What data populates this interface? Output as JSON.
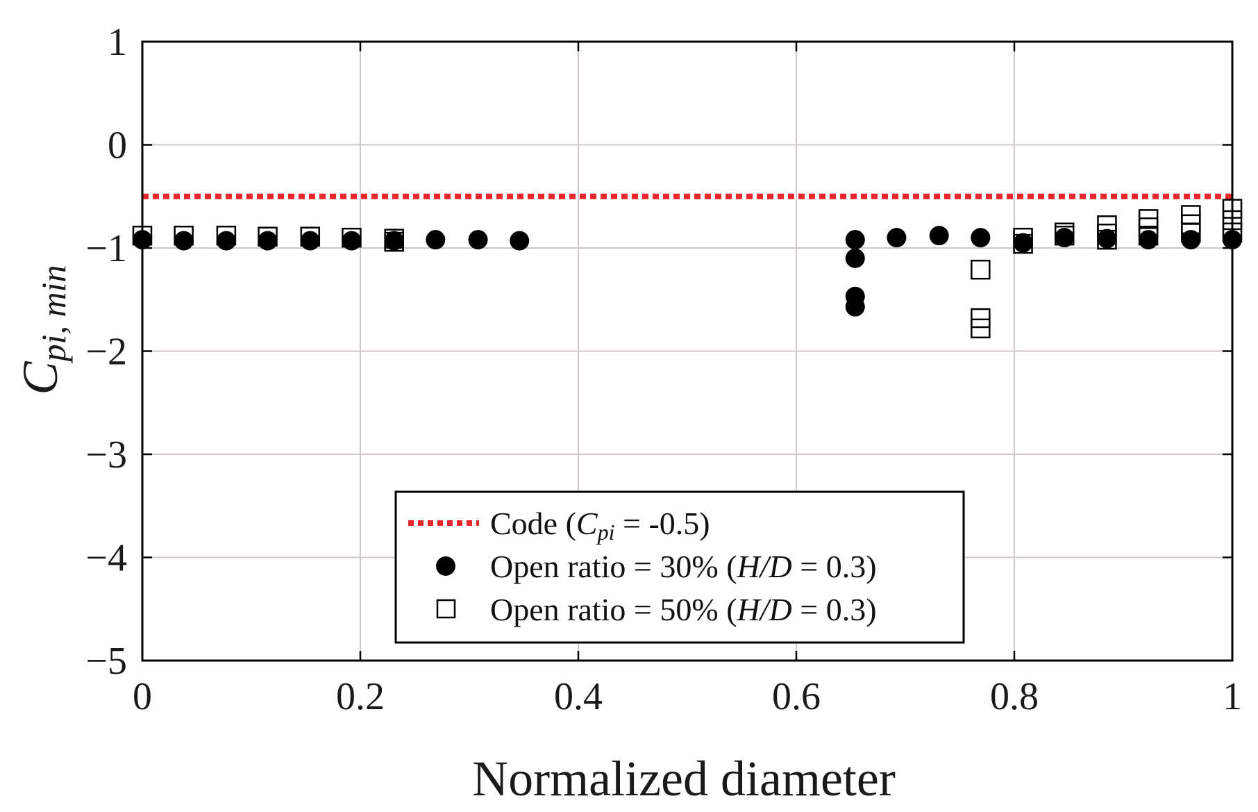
{
  "chart_data": {
    "type": "scatter",
    "xlabel": "Normalized diameter",
    "ylabel": {
      "main": "C",
      "sub": "pi, min"
    },
    "xlim": [
      0,
      1
    ],
    "ylim": [
      -5,
      1
    ],
    "xticks": [
      0,
      0.2,
      0.4,
      0.6,
      0.8,
      1
    ],
    "xtick_labels": [
      "0",
      "0.2",
      "0.4",
      "0.6",
      "0.8",
      "1"
    ],
    "yticks": [
      1,
      0,
      -1,
      -2,
      -3,
      -4,
      -5
    ],
    "ytick_labels": [
      "1",
      "0",
      "−1",
      "−2",
      "−3",
      "−4",
      "−5"
    ],
    "grid": true,
    "legend_position": "bottom-center",
    "reference_line": {
      "name": "Code",
      "value": -0.5,
      "color": "#e8262b",
      "style": "dotted",
      "legend": {
        "pre": "Code (",
        "sym": "C",
        "sub": "pi",
        "post": " = -0.5)"
      }
    },
    "series": [
      {
        "name": "Open ratio = 30%",
        "marker": "filled-circle",
        "color": "#000000",
        "legend": {
          "pre": "Open ratio = 30% (",
          "it": "H/D",
          "post": " = 0.3)"
        },
        "points": [
          [
            0.0,
            -0.92
          ],
          [
            0.038,
            -0.93
          ],
          [
            0.077,
            -0.93
          ],
          [
            0.115,
            -0.93
          ],
          [
            0.154,
            -0.93
          ],
          [
            0.192,
            -0.93
          ],
          [
            0.231,
            -0.93
          ],
          [
            0.269,
            -0.92
          ],
          [
            0.308,
            -0.92
          ],
          [
            0.346,
            -0.93
          ],
          [
            0.654,
            -0.92
          ],
          [
            0.654,
            -1.1
          ],
          [
            0.654,
            -1.47
          ],
          [
            0.654,
            -1.57
          ],
          [
            0.692,
            -0.9
          ],
          [
            0.731,
            -0.88
          ],
          [
            0.769,
            -0.9
          ],
          [
            0.808,
            -0.95
          ],
          [
            0.846,
            -0.9
          ],
          [
            0.885,
            -0.91
          ],
          [
            0.923,
            -0.92
          ],
          [
            0.962,
            -0.92
          ],
          [
            1.0,
            -0.92
          ]
        ]
      },
      {
        "name": "Open ratio = 50%",
        "marker": "open-square",
        "color": "#000000",
        "legend": {
          "pre": "Open ratio = 50% (",
          "it": "H/D",
          "post": " = 0.3)"
        },
        "points": [
          [
            0.0,
            -0.88
          ],
          [
            0.038,
            -0.88
          ],
          [
            0.077,
            -0.88
          ],
          [
            0.115,
            -0.89
          ],
          [
            0.154,
            -0.89
          ],
          [
            0.192,
            -0.9
          ],
          [
            0.231,
            -0.91
          ],
          [
            0.231,
            -0.94
          ],
          [
            0.769,
            -1.21
          ],
          [
            0.769,
            -1.68
          ],
          [
            0.769,
            -1.78
          ],
          [
            0.808,
            -0.9
          ],
          [
            0.808,
            -0.96
          ],
          [
            0.846,
            -0.85
          ],
          [
            0.846,
            -0.88
          ],
          [
            0.885,
            -0.78
          ],
          [
            0.885,
            -0.86
          ],
          [
            0.885,
            -0.92
          ],
          [
            0.923,
            -0.72
          ],
          [
            0.923,
            -0.8
          ],
          [
            0.923,
            -0.88
          ],
          [
            0.962,
            -0.68
          ],
          [
            0.962,
            -0.77
          ],
          [
            0.962,
            -0.85
          ],
          [
            1.0,
            -0.62
          ],
          [
            1.0,
            -0.73
          ],
          [
            1.0,
            -0.85
          ]
        ]
      }
    ]
  }
}
